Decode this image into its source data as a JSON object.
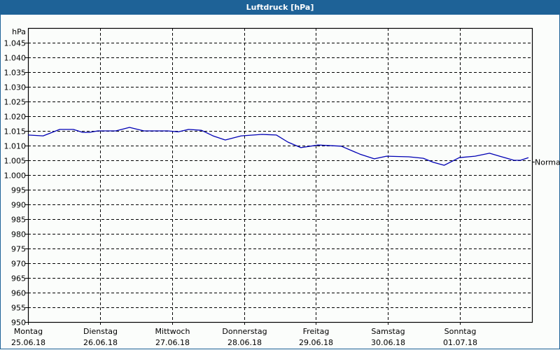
{
  "window": {
    "title": "Luftdruck [hPa]"
  },
  "colors": {
    "titlebar": "#1e6297",
    "line": "#0000b4",
    "grid": "#000000",
    "background": "#fbfdfb"
  },
  "chart_data": {
    "type": "line",
    "title": "Luftdruck [hPa]",
    "xlabel": "",
    "ylabel": "hPa",
    "ylim": [
      950,
      1050
    ],
    "y_ticks": [
      "1.045",
      "1.040",
      "1.035",
      "1.030",
      "1.025",
      "1.020",
      "1.015",
      "1.010",
      "1.005",
      "1.000",
      "995",
      "990",
      "985",
      "980",
      "975",
      "970",
      "965",
      "960",
      "955",
      "950"
    ],
    "y_tick_values": [
      1045,
      1040,
      1035,
      1030,
      1025,
      1020,
      1015,
      1010,
      1005,
      1000,
      995,
      990,
      985,
      980,
      975,
      970,
      965,
      960,
      955,
      950
    ],
    "categories": [
      {
        "day": "Montag",
        "date": "25.06.18"
      },
      {
        "day": "Dienstag",
        "date": "26.06.18"
      },
      {
        "day": "Mittwoch",
        "date": "27.06.18"
      },
      {
        "day": "Donnerstag",
        "date": "28.06.18"
      },
      {
        "day": "Freitag",
        "date": "29.06.18"
      },
      {
        "day": "Samstag",
        "date": "30.06.18"
      },
      {
        "day": "Sonntag",
        "date": "01.07.18"
      }
    ],
    "grid": true,
    "reference_line": {
      "label": "Normal",
      "value": 1004.6
    },
    "series": [
      {
        "name": "Luftdruck",
        "x_days": [
          0,
          0.21,
          0.44,
          0.63,
          0.76,
          0.85,
          0.97,
          1.22,
          1.41,
          1.61,
          1.94,
          2.09,
          2.23,
          2.41,
          2.57,
          2.74,
          2.96,
          3.25,
          3.45,
          3.61,
          3.79,
          4.03,
          4.35,
          4.61,
          4.81,
          4.98,
          5.29,
          5.49,
          5.63,
          5.78,
          5.99,
          6.21,
          6.41,
          6.55,
          6.75,
          6.84,
          6.95
        ],
        "values": [
          1013.6,
          1013.3,
          1015.5,
          1015.5,
          1014.5,
          1014.5,
          1015.0,
          1015.0,
          1016.2,
          1015.0,
          1015.0,
          1014.7,
          1015.5,
          1015.2,
          1013.3,
          1011.9,
          1013.3,
          1013.8,
          1013.6,
          1011.2,
          1009.3,
          1010.2,
          1009.8,
          1007.1,
          1005.5,
          1006.4,
          1006.2,
          1005.7,
          1004.3,
          1003.3,
          1005.9,
          1006.4,
          1007.4,
          1006.4,
          1005.0,
          1005.0,
          1005.9
        ]
      }
    ]
  }
}
